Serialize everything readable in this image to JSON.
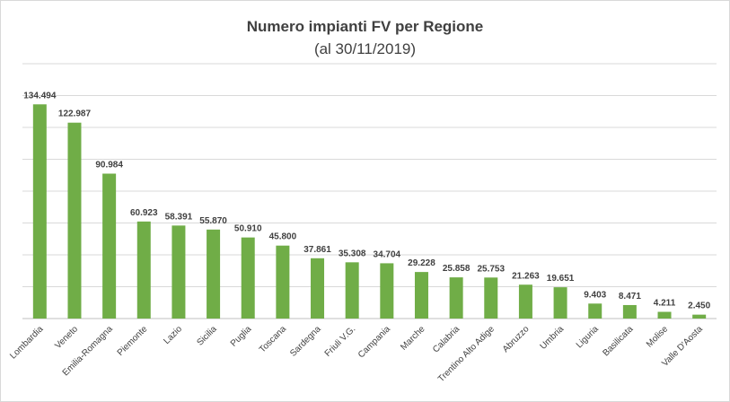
{
  "chart_data": {
    "type": "bar",
    "title": "Numero impianti FV per Regione",
    "subtitle": "(al 30/11/2019)",
    "xlabel": "",
    "ylabel": "",
    "ylim": [
      0,
      160000
    ],
    "grid": true,
    "legend": "none",
    "bar_color": "#70ad47",
    "categories": [
      "Lombardia",
      "Veneto",
      "Emilia-Romagna",
      "Piemonte",
      "Lazio",
      "Sicilia",
      "Puglia",
      "Toscana",
      "Sardegna",
      "Friuli V.G.",
      "Campania",
      "Marche",
      "Calabria",
      "Trentino Alto Adige",
      "Abruzzo",
      "Umbria",
      "Liguria",
      "Basilicata",
      "Molise",
      "Valle D'Aosta"
    ],
    "values": [
      134494,
      122987,
      90984,
      60923,
      58391,
      55870,
      50910,
      45800,
      37861,
      35308,
      34704,
      29228,
      25858,
      25753,
      21263,
      19651,
      9403,
      8471,
      4211,
      2450
    ],
    "value_labels": [
      "134.494",
      "122.987",
      "90.984",
      "60.923",
      "58.391",
      "55.870",
      "50.910",
      "45.800",
      "37.861",
      "35.308",
      "34.704",
      "29.228",
      "25.858",
      "25.753",
      "21.263",
      "19.651",
      "9.403",
      "8.471",
      "4.211",
      "2.450"
    ]
  }
}
